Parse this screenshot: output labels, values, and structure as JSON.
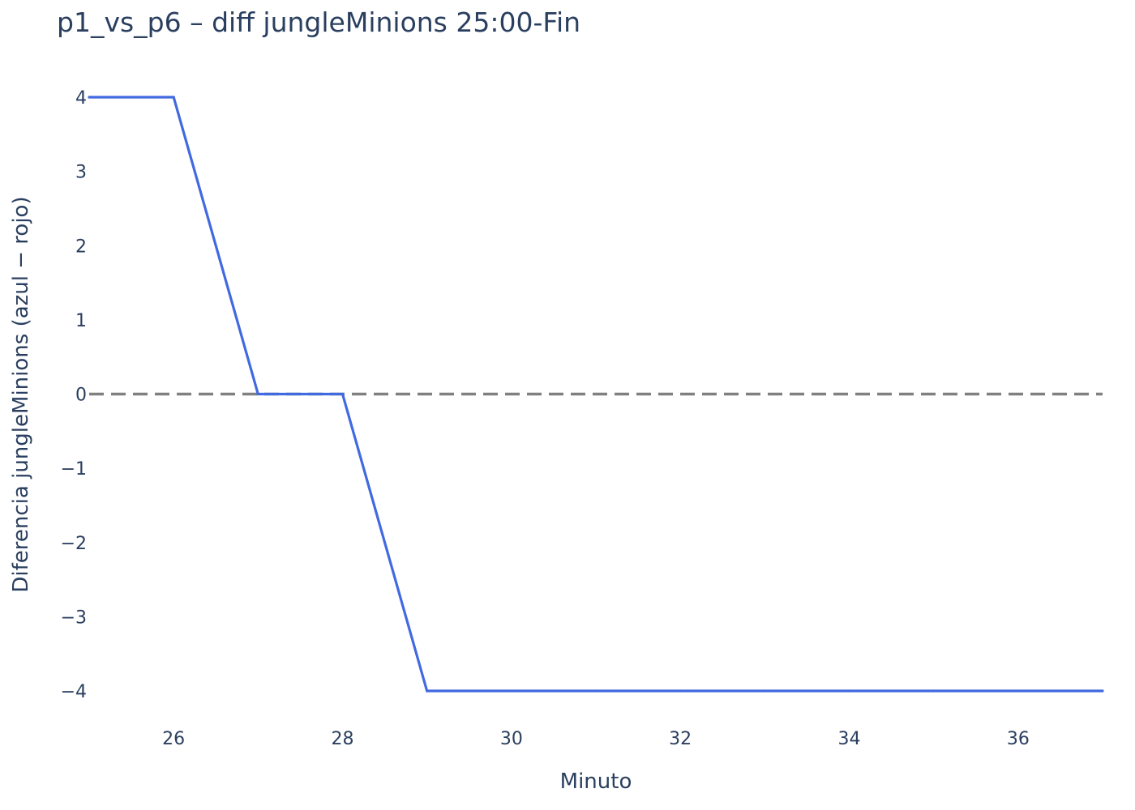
{
  "chart_data": {
    "type": "line",
    "title": "p1_vs_p6 – diff jungleMinions 25:00-Fin",
    "xlabel": "Minuto",
    "ylabel": "Diferencia jungleMinions (azul − rojo)",
    "x": [
      25,
      26,
      27,
      28,
      29,
      30,
      31,
      32,
      33,
      34,
      35,
      36,
      37
    ],
    "series": [
      {
        "values": [
          4,
          4,
          0,
          0,
          -4,
          -4,
          -4,
          -4,
          -4,
          -4,
          -4,
          -4,
          -4
        ],
        "color": "#4169e1"
      }
    ],
    "reference_line": {
      "y": 0,
      "style": "dashed",
      "color": "#808080"
    },
    "xlim": [
      25,
      37
    ],
    "ylim": [
      -4,
      4
    ],
    "xticks": [
      26,
      28,
      30,
      32,
      34,
      36
    ],
    "yticks": [
      4,
      3,
      2,
      1,
      0,
      -1,
      -2,
      -3,
      -4
    ],
    "ytick_labels": [
      "4",
      "3",
      "2",
      "1",
      "0",
      "−1",
      "−2",
      "−3",
      "−4"
    ],
    "grid": false,
    "legend": "none"
  }
}
